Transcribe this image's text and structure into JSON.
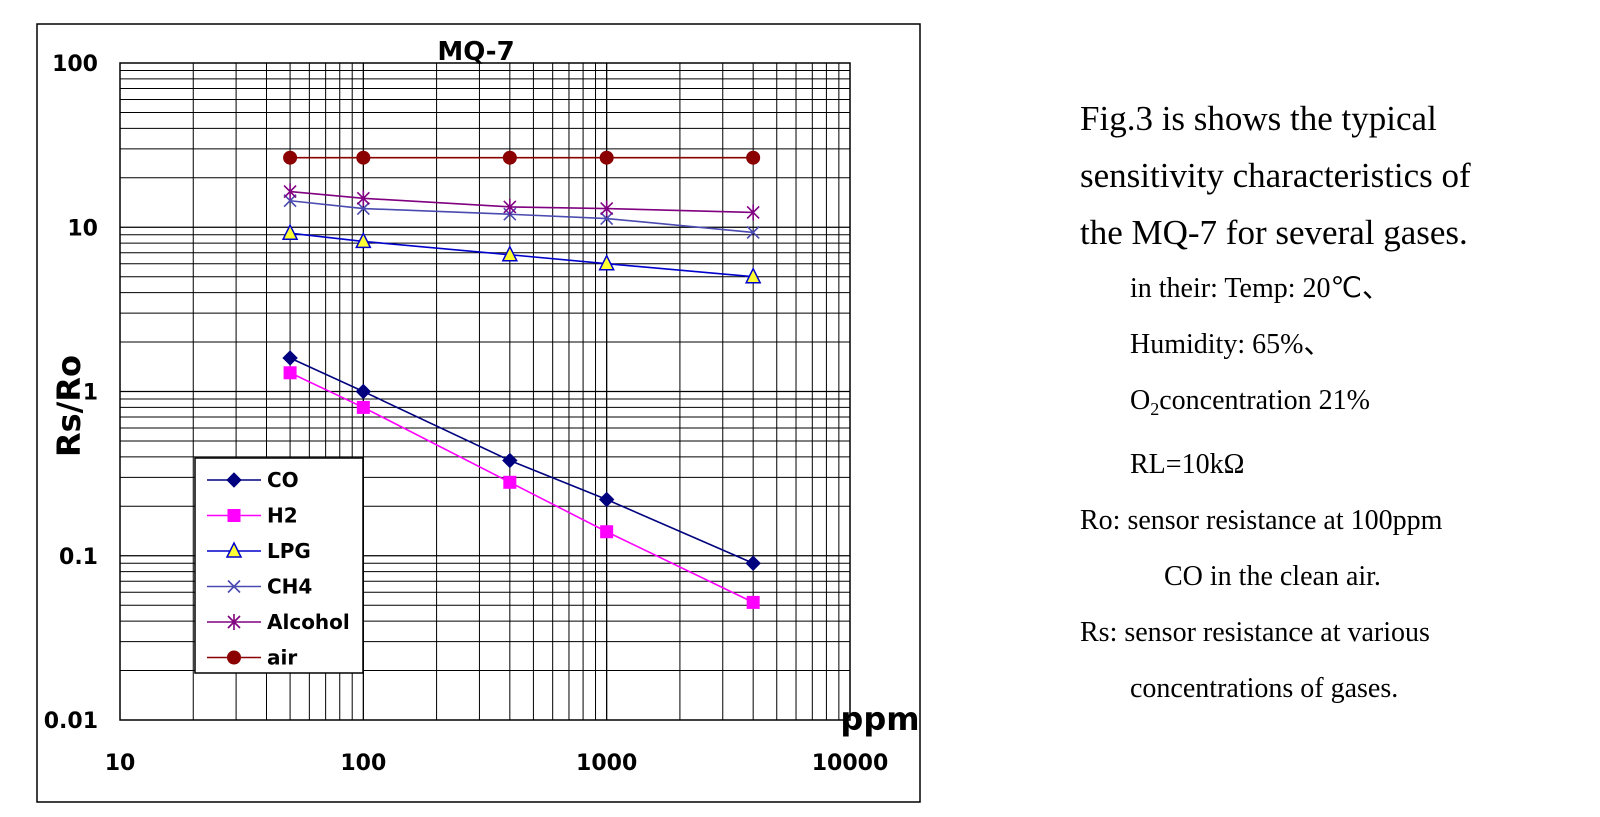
{
  "chart_data": {
    "type": "line",
    "title": "MQ-7",
    "xlabel": "ppm",
    "ylabel": "Rs/Ro",
    "xscale": "log",
    "yscale": "log",
    "xlim": [
      10,
      10000
    ],
    "ylim": [
      0.01,
      100
    ],
    "x_tick_labels": [
      "10",
      "100",
      "1000",
      "10000"
    ],
    "y_tick_labels": [
      "0.01",
      "0.1",
      "1",
      "10",
      "100"
    ],
    "grid": true,
    "legend": "bottom-left",
    "series": [
      {
        "name": "CO",
        "color": "#00007f",
        "marker": "diamond",
        "x": [
          50,
          100,
          400,
          1000,
          4000
        ],
        "y": [
          1.6,
          1.0,
          0.38,
          0.22,
          0.09
        ]
      },
      {
        "name": "H2",
        "color": "#ff00ff",
        "marker": "square",
        "x": [
          50,
          100,
          400,
          1000,
          4000
        ],
        "y": [
          1.3,
          0.8,
          0.28,
          0.14,
          0.052
        ]
      },
      {
        "name": "LPG",
        "color": "#0000cc",
        "marker": "triangle",
        "x": [
          50,
          100,
          400,
          1000,
          4000
        ],
        "y": [
          9.2,
          8.2,
          6.8,
          6.0,
          5.0
        ]
      },
      {
        "name": "CH4",
        "color": "#4a4ab0",
        "marker": "x",
        "x": [
          50,
          100,
          400,
          1000,
          4000
        ],
        "y": [
          14.5,
          13.0,
          12.0,
          11.3,
          9.3
        ]
      },
      {
        "name": "Alcohol",
        "color": "#800080",
        "marker": "asterisk",
        "x": [
          50,
          100,
          400,
          1000,
          4000
        ],
        "y": [
          16.5,
          15.0,
          13.3,
          13.0,
          12.3
        ]
      },
      {
        "name": "air",
        "color": "#8b0000",
        "marker": "circle",
        "x": [
          50,
          100,
          400,
          1000,
          4000
        ],
        "y": [
          26.5,
          26.5,
          26.5,
          26.5,
          26.5
        ]
      }
    ]
  },
  "notes": {
    "line1": "Fig.3 is shows the typical",
    "line2": "sensitivity characteristics of",
    "line3": "the MQ-7 for several gases.",
    "line4": "in their: Temp: 20℃、",
    "line5": "Humidity: 65%、",
    "line6_pre": "O",
    "line6_sub": "2",
    "line6_post": "concentration 21%",
    "line7": "RL=10kΩ",
    "line8": "Ro: sensor resistance at 100ppm",
    "line9": "CO in the clean air.",
    "line10": "Rs: sensor resistance at various",
    "line11": "concentrations of gases."
  }
}
